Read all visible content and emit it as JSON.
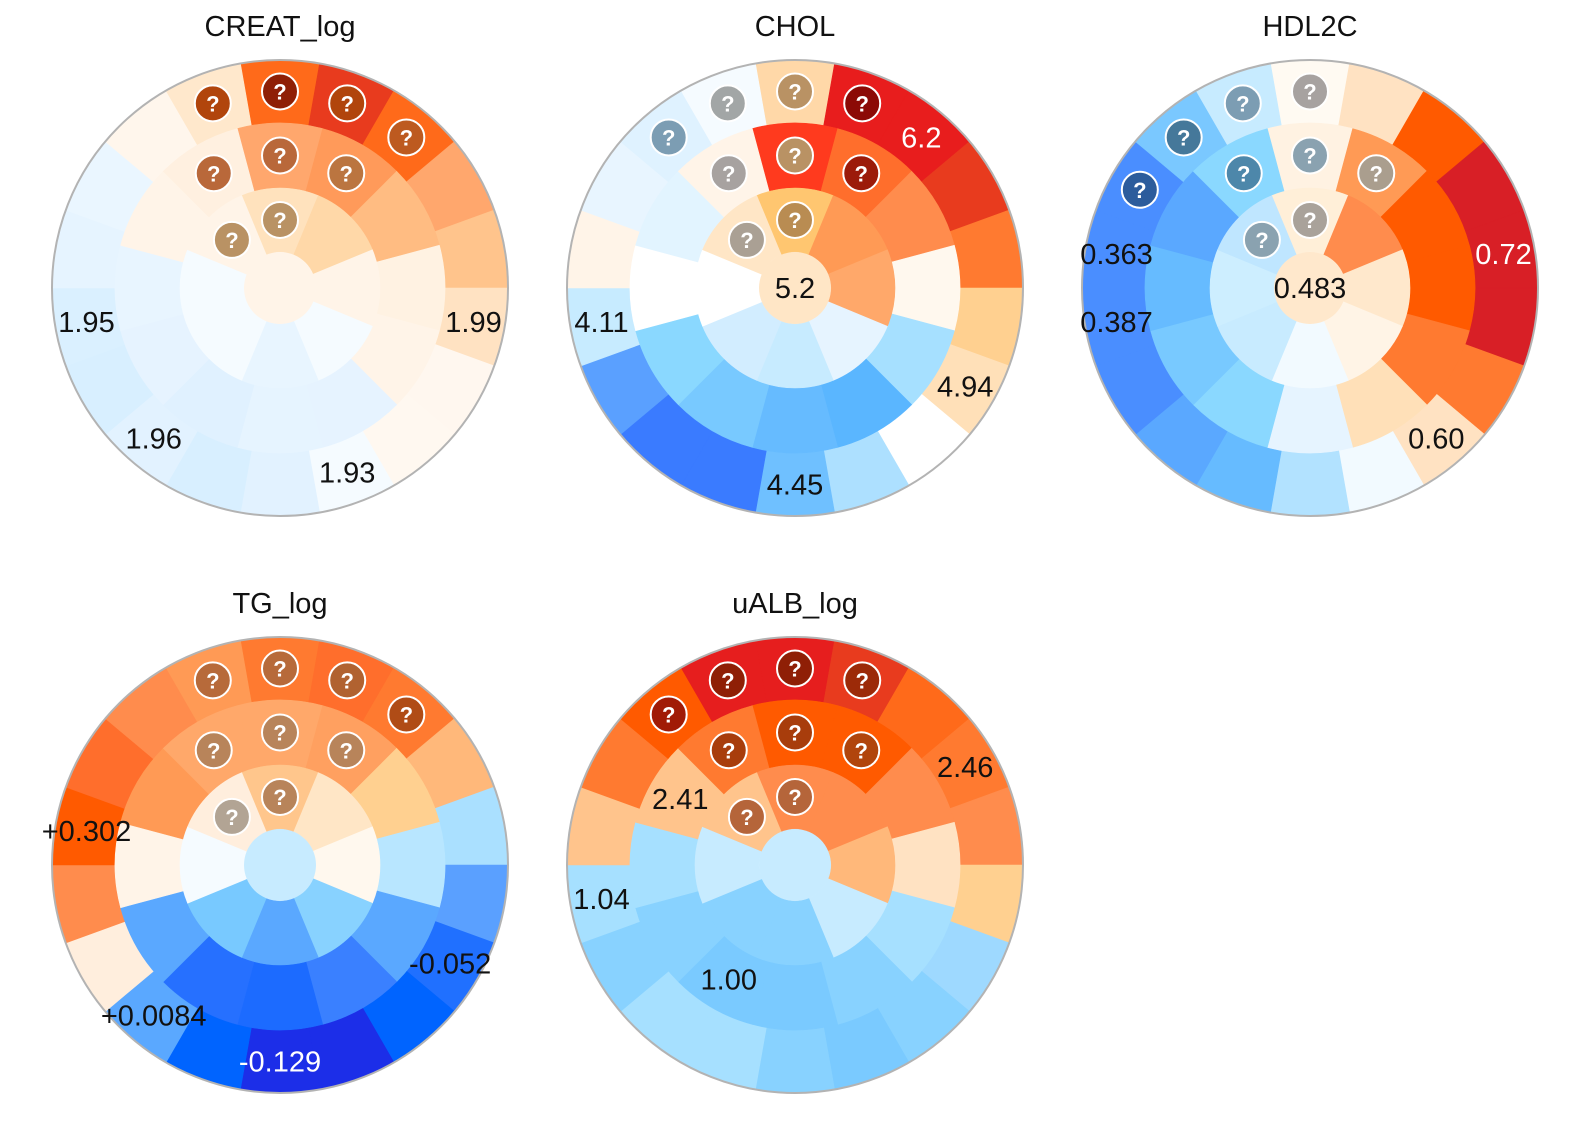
{
  "chart_data": [
    {
      "type": "radial-heatmap",
      "title": "CREAT_log",
      "colors": {
        "center": "#fff4e8",
        "inner": [
          "#ffe2bd",
          "#ffd8a8",
          "#fff4e8",
          "#f5fbff",
          "#e8f5ff",
          "#f5fbff",
          "#f5fbff",
          "#fff4e8"
        ],
        "middle": [
          "#ffa76d",
          "#ff9a5a",
          "#ffbc82",
          "#fff2e2",
          "#fff4e8",
          "#e6f3ff",
          "#e6f4ff",
          "#e0f1ff",
          "#e6f3ff",
          "#e8f5ff",
          "#fff4e8",
          "#fff0e0"
        ],
        "outer": [
          "#ff6a1a",
          "#e83b1e",
          "#ff6a1a",
          "#ffa76d",
          "#ffc48c",
          "#ffe2c2",
          "#fff7ef",
          "#fff8f0",
          "#f5fbff",
          "#e2f2ff",
          "#d8efff",
          "#e2f2ff",
          "#d8efff",
          "#daf0ff",
          "#e6f4ff",
          "#eaf6ff",
          "#fff6ec",
          "#ffe8cc"
        ]
      },
      "badges": [
        {
          "ring": "outer",
          "seg": 17,
          "color": "#b1450c"
        },
        {
          "ring": "outer",
          "seg": 0,
          "color": "#8f1f06"
        },
        {
          "ring": "outer",
          "seg": 1,
          "color": "#b1450c"
        },
        {
          "ring": "outer",
          "seg": 2,
          "color": "#bd5a20"
        },
        {
          "ring": "middle",
          "seg": 11,
          "color": "#b9683a"
        },
        {
          "ring": "middle",
          "seg": 0,
          "color": "#b9683a"
        },
        {
          "ring": "middle",
          "seg": 1,
          "color": "#bb7540"
        },
        {
          "ring": "inner",
          "seg": 7,
          "color": "#b99264"
        },
        {
          "ring": "inner",
          "seg": 0,
          "color": "#b99264"
        }
      ],
      "labels": [
        {
          "text": "1.95",
          "ring": "outer",
          "seg": 13,
          "color": "#111111"
        },
        {
          "text": "1.99",
          "ring": "outer",
          "seg": 5,
          "color": "#111111"
        },
        {
          "text": "1.96",
          "ring": "outer",
          "seg": 11,
          "color": "#111111"
        },
        {
          "text": "1.93",
          "ring": "outer",
          "seg": 8,
          "color": "#111111"
        }
      ]
    },
    {
      "type": "radial-heatmap",
      "title": "CHOL",
      "colors": {
        "center": "#ffe6c6",
        "inner": [
          "#ffc670",
          "#ff9a55",
          "#ffa86a",
          "#e6f4ff",
          "#c7ebff",
          "#d2edff",
          "#ffffff",
          "#ffe6c6"
        ],
        "middle": [
          "#ff3a1e",
          "#ff6e2c",
          "#ff8c4d",
          "#fff8ee",
          "#a6e0ff",
          "#5ab6ff",
          "#66bbff",
          "#78c9ff",
          "#8ad8ff",
          "#ffffff",
          "#e2f4ff",
          "#fff4e8"
        ],
        "outer": [
          "#ffd8a8",
          "#e81d1d",
          "#e81d1d",
          "#e83b1e",
          "#ff7a30",
          "#ffd090",
          "#ffe0b8",
          "#ffffff",
          "#ade0ff",
          "#6fc0ff",
          "#3a7bff",
          "#3a7bff",
          "#5aa0ff",
          "#c7ebff",
          "#fff4e8",
          "#e8f5ff",
          "#dff2ff",
          "#f5fbff"
        ]
      },
      "badges": [
        {
          "ring": "outer",
          "seg": 16,
          "color": "#7c9db3"
        },
        {
          "ring": "outer",
          "seg": 17,
          "color": "#a2a6a6"
        },
        {
          "ring": "outer",
          "seg": 0,
          "color": "#b99264"
        },
        {
          "ring": "outer",
          "seg": 1,
          "color": "#8c0a06"
        },
        {
          "ring": "middle",
          "seg": 11,
          "color": "#a7a2a0"
        },
        {
          "ring": "middle",
          "seg": 0,
          "color": "#b99264"
        },
        {
          "ring": "middle",
          "seg": 1,
          "color": "#9c1b0a"
        },
        {
          "ring": "inner",
          "seg": 7,
          "color": "#aaa094"
        },
        {
          "ring": "inner",
          "seg": 0,
          "color": "#b98c52"
        }
      ],
      "labels": [
        {
          "text": "6.2",
          "ring": "outer",
          "seg": 2,
          "color": "#ffffff"
        },
        {
          "text": "5.2",
          "ring": "center",
          "seg": 0,
          "color": "#111111"
        },
        {
          "text": "4.11",
          "ring": "outer",
          "seg": 13,
          "color": "#111111"
        },
        {
          "text": "4.94",
          "ring": "outer",
          "seg": 6,
          "color": "#111111"
        },
        {
          "text": "4.45",
          "ring": "outer",
          "seg": 9,
          "color": "#111111"
        }
      ]
    },
    {
      "type": "radial-heatmap",
      "title": "HDL2C",
      "colors": {
        "center": "#ffe8cc",
        "inner": [
          "#ffefd8",
          "#ff8c4d",
          "#ffe8cc",
          "#fff4e6",
          "#f2faff",
          "#c8ebff",
          "#cdeeff",
          "#bfe6ff"
        ],
        "middle": [
          "#fff2e2",
          "#ff9a55",
          "#ff5a00",
          "#ff5a00",
          "#ff7a30",
          "#ffe0b8",
          "#e6f4ff",
          "#8ad8ff",
          "#78c9ff",
          "#66bbff",
          "#5aa8ff",
          "#8ad8ff"
        ],
        "outer": [
          "#fffaf2",
          "#ffe2c2",
          "#ff5a00",
          "#d81f26",
          "#d81f26",
          "#d81f26",
          "#ff7a30",
          "#ffe2c2",
          "#f2faff",
          "#b2e2ff",
          "#66bbff",
          "#5aa8ff",
          "#4a8eff",
          "#4a8eff",
          "#4a8eff",
          "#4a8eff",
          "#7ac8ff",
          "#c7ebff"
        ]
      },
      "badges": [
        {
          "ring": "outer",
          "seg": 15,
          "color": "#2c5c9c"
        },
        {
          "ring": "outer",
          "seg": 16,
          "color": "#45789a"
        },
        {
          "ring": "outer",
          "seg": 17,
          "color": "#7c9db3"
        },
        {
          "ring": "outer",
          "seg": 0,
          "color": "#a7a2a0"
        },
        {
          "ring": "middle",
          "seg": 11,
          "color": "#4d87aa"
        },
        {
          "ring": "middle",
          "seg": 0,
          "color": "#8aa2b0"
        },
        {
          "ring": "middle",
          "seg": 1,
          "color": "#aa9e8e"
        },
        {
          "ring": "inner",
          "seg": 7,
          "color": "#8aa2b0"
        },
        {
          "ring": "inner",
          "seg": 0,
          "color": "#a9a29a"
        }
      ],
      "labels": [
        {
          "text": "0.363",
          "ring": "outer",
          "seg": 14,
          "color": "#111111"
        },
        {
          "text": "0.483",
          "ring": "center",
          "seg": 0,
          "color": "#111111"
        },
        {
          "text": "0.387",
          "ring": "outer",
          "seg": 13,
          "color": "#111111"
        },
        {
          "text": "0.72",
          "ring": "outer",
          "seg": 4,
          "color": "#ffffff"
        },
        {
          "text": "0.60",
          "ring": "outer",
          "seg": 7,
          "color": "#111111"
        }
      ]
    },
    {
      "type": "radial-heatmap",
      "title": "TG_log",
      "colors": {
        "center": "#c7ebff",
        "inner": [
          "#ffc68c",
          "#ffe6c6",
          "#fff8ee",
          "#88d2ff",
          "#5aa8ff",
          "#78c9ff",
          "#f5fbff",
          "#ffeedd"
        ],
        "middle": [
          "#ffa86a",
          "#ffa060",
          "#ffd090",
          "#b8e6ff",
          "#5aa8ff",
          "#3a80ff",
          "#1c6bff",
          "#2670ff",
          "#5aa8ff",
          "#fff4e8",
          "#ff9a55",
          "#ffa86a"
        ],
        "outer": [
          "#ff7a30",
          "#ff6e2c",
          "#ff7a30",
          "#ffb87a",
          "#aae0ff",
          "#5aa0ff",
          "#2070ff",
          "#0064ff",
          "#1c2ee8",
          "#1c2ee8",
          "#0064ff",
          "#5aa8ff",
          "#ffeedd",
          "#ff8c4d",
          "#ff5a00",
          "#ff6e2c",
          "#ff8c4d",
          "#ff9a55"
        ]
      },
      "badges": [
        {
          "ring": "outer",
          "seg": 17,
          "color": "#b76a3a"
        },
        {
          "ring": "outer",
          "seg": 0,
          "color": "#b76a3a"
        },
        {
          "ring": "outer",
          "seg": 1,
          "color": "#b16230"
        },
        {
          "ring": "outer",
          "seg": 2,
          "color": "#b04c16"
        },
        {
          "ring": "middle",
          "seg": 11,
          "color": "#b8845a"
        },
        {
          "ring": "middle",
          "seg": 0,
          "color": "#b8845a"
        },
        {
          "ring": "middle",
          "seg": 1,
          "color": "#b8845a"
        },
        {
          "ring": "inner",
          "seg": 7,
          "color": "#b2a494"
        },
        {
          "ring": "inner",
          "seg": 0,
          "color": "#b8845a"
        }
      ],
      "labels": [
        {
          "text": "+0.302",
          "ring": "outer",
          "seg": 14,
          "color": "#111111"
        },
        {
          "text": "+0.0084",
          "ring": "outer",
          "seg": 11,
          "color": "#111111"
        },
        {
          "text": "-0.052",
          "ring": "outer",
          "seg": 6,
          "color": "#111111"
        },
        {
          "text": "-0.129",
          "ring": "outer",
          "seg": 9,
          "color": "#ffffff"
        }
      ]
    },
    {
      "type": "radial-heatmap",
      "title": "uALB_log",
      "colors": {
        "center": "#c7ebff",
        "inner": [
          "#ff8c4d",
          "#ff8c4d",
          "#ffb87a",
          "#c7ebff",
          "#88d2ff",
          "#88d2ff",
          "#c7ebff",
          "#ffc48c"
        ],
        "middle": [
          "#ff5a00",
          "#ff5a00",
          "#ff8c4d",
          "#ffe2c2",
          "#a6e0ff",
          "#88d2ff",
          "#7acaff",
          "#7acaff",
          "#88d2ff",
          "#a6e0ff",
          "#ffc48c",
          "#ff7a30"
        ],
        "outer": [
          "#e61e1e",
          "#e83b1e",
          "#ff6a1a",
          "#ff7a30",
          "#ff8c4d",
          "#ffd090",
          "#9ed9ff",
          "#88d2ff",
          "#7acaff",
          "#88d2ff",
          "#a6e0ff",
          "#a6e0ff",
          "#88d2ff",
          "#a6e0ff",
          "#ffc48c",
          "#ff7a30",
          "#ff5a00",
          "#e61e1e"
        ]
      },
      "badges": [
        {
          "ring": "outer",
          "seg": 16,
          "color": "#a11b06"
        },
        {
          "ring": "outer",
          "seg": 17,
          "color": "#8f1f06"
        },
        {
          "ring": "outer",
          "seg": 0,
          "color": "#8f1f06"
        },
        {
          "ring": "outer",
          "seg": 1,
          "color": "#9c2a08"
        },
        {
          "ring": "middle",
          "seg": 11,
          "color": "#a83d0c"
        },
        {
          "ring": "middle",
          "seg": 0,
          "color": "#a83d0c"
        },
        {
          "ring": "middle",
          "seg": 1,
          "color": "#b1450c"
        },
        {
          "ring": "inner",
          "seg": 7,
          "color": "#b5653a"
        },
        {
          "ring": "inner",
          "seg": 0,
          "color": "#b5653a"
        }
      ],
      "labels": [
        {
          "text": "2.41",
          "ring": "middle",
          "seg": 10,
          "color": "#111111"
        },
        {
          "text": "2.46",
          "ring": "outer",
          "seg": 3,
          "color": "#111111"
        },
        {
          "text": "1.04",
          "ring": "outer",
          "seg": 13,
          "color": "#111111"
        },
        {
          "text": "1.00",
          "ring": "middle",
          "seg": 7,
          "color": "#111111"
        }
      ]
    }
  ]
}
